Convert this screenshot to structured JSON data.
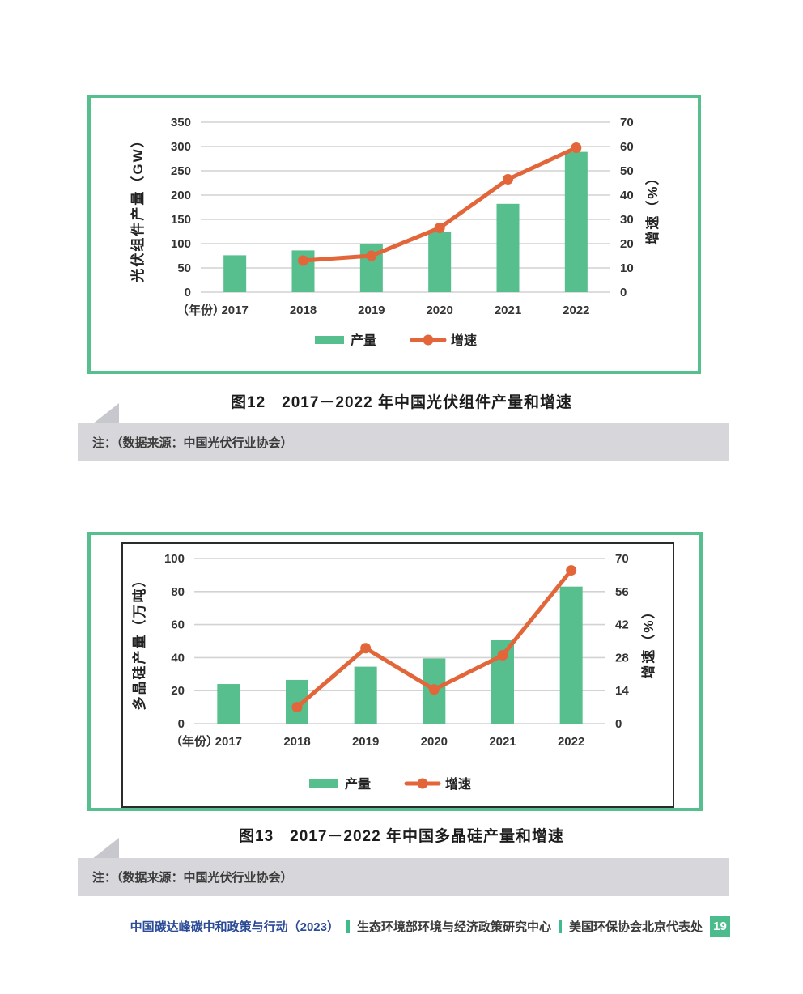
{
  "colors": {
    "bar_green": "#57BE8D",
    "line_orange": "#E2663A",
    "panel_border_green": "#57BE8D",
    "grid": "#D2D2D2",
    "axis_text": "#333333",
    "note_bg": "#D7D7DB",
    "footer_blue": "#2B4B97",
    "footer_separator_green": "#3FBA8A",
    "page_badge_green": "#4CBC8C"
  },
  "chart_data": [
    {
      "type": "bar+line",
      "caption": "图12　2017－2022 年中国光伏组件产量和增速",
      "note": "注：（数据来源：中国光伏行业协会）",
      "categories": [
        "2017",
        "2018",
        "2019",
        "2020",
        "2021",
        "2022"
      ],
      "x_axis_prefix": "（年份）",
      "series": [
        {
          "name": "产量",
          "type": "bar",
          "axis": "left",
          "values": [
            76,
            86,
            99,
            125,
            182,
            289
          ]
        },
        {
          "name": "增速",
          "type": "line",
          "axis": "right",
          "values": [
            null,
            13,
            15,
            26.5,
            46.5,
            59.5
          ]
        }
      ],
      "left_axis": {
        "label": "光伏组件产量（GW）",
        "min": 0,
        "max": 350,
        "ticks": [
          0,
          50,
          100,
          150,
          200,
          250,
          300,
          350
        ]
      },
      "right_axis": {
        "label": "增速（%）",
        "min": 0,
        "max": 70,
        "ticks": [
          0,
          10,
          20,
          30,
          40,
          50,
          60,
          70
        ]
      },
      "grid": true,
      "legend_position": "bottom"
    },
    {
      "type": "bar+line",
      "caption": "图13　2017－2022 年中国多晶硅产量和增速",
      "note": "注：（数据来源：中国光伏行业协会）",
      "categories": [
        "2017",
        "2018",
        "2019",
        "2020",
        "2021",
        "2022"
      ],
      "x_axis_prefix": "（年份）",
      "series": [
        {
          "name": "产量",
          "type": "bar",
          "axis": "left",
          "values": [
            24,
            26.5,
            34.5,
            39.5,
            50.5,
            83
          ]
        },
        {
          "name": "增速",
          "type": "line",
          "axis": "right",
          "values": [
            null,
            7,
            32,
            14.5,
            29,
            65
          ]
        }
      ],
      "left_axis": {
        "label": "多晶硅产量（万吨）",
        "min": 0,
        "max": 100,
        "ticks": [
          0,
          20,
          40,
          60,
          80,
          100
        ]
      },
      "right_axis": {
        "label": "增速（%）",
        "min": 0,
        "max": 70,
        "ticks": [
          0,
          14,
          28,
          42,
          56,
          70
        ]
      },
      "grid": true,
      "legend_position": "bottom"
    }
  ],
  "footer": {
    "brand": "中国碳达峰碳中和政策与行动（2023）",
    "org1": "生态环境部环境与经济政策研究中心",
    "org2": "美国环保协会北京代表处",
    "page_number": "19"
  }
}
